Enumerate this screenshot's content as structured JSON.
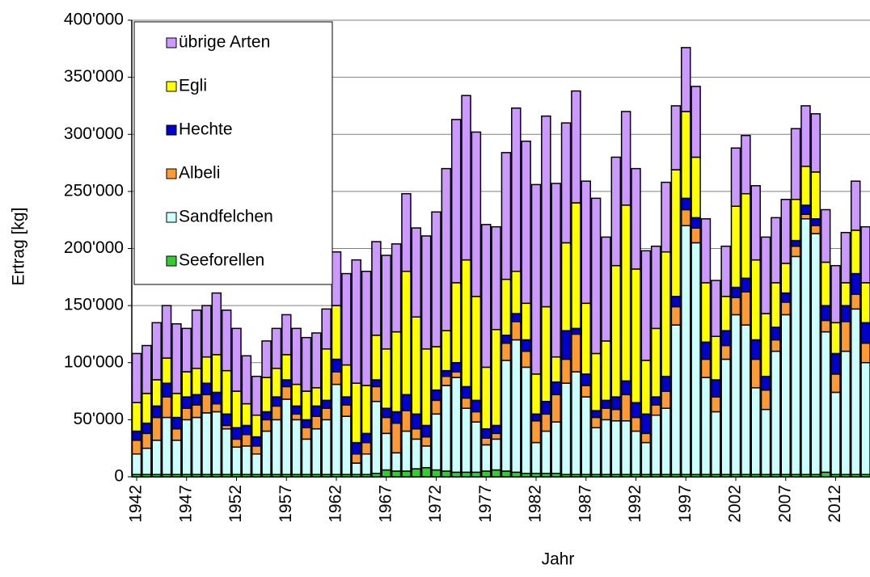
{
  "chart_data": {
    "type": "stacked-bar",
    "x_label": "Jahr",
    "y_label": "Ertrag [kg]",
    "categories": [
      "1942",
      null,
      null,
      null,
      null,
      "1947",
      null,
      null,
      null,
      null,
      "1952",
      null,
      null,
      null,
      null,
      "1957",
      null,
      null,
      null,
      null,
      "1962",
      null,
      null,
      null,
      null,
      "1967",
      null,
      null,
      null,
      null,
      "1972",
      null,
      null,
      null,
      null,
      "1977",
      null,
      null,
      null,
      null,
      "1982",
      null,
      null,
      null,
      null,
      "1987",
      null,
      null,
      null,
      null,
      "1992",
      null,
      null,
      null,
      null,
      "1997",
      null,
      null,
      null,
      null,
      "2002",
      null,
      null,
      null,
      null,
      "2007",
      null,
      null,
      null,
      null,
      "2012",
      null,
      null,
      null
    ],
    "series": [
      {
        "name": "Seeforellen",
        "color": "#33cc33",
        "values": [
          2000,
          2000,
          2000,
          2000,
          2000,
          2000,
          2000,
          2000,
          2000,
          2000,
          2000,
          2000,
          2000,
          2000,
          2000,
          2000,
          2000,
          2000,
          2000,
          2000,
          2000,
          2000,
          2000,
          2000,
          3000,
          6000,
          5000,
          5000,
          7000,
          8000,
          6000,
          5000,
          4000,
          4000,
          4000,
          5000,
          6000,
          5000,
          4000,
          3000,
          3000,
          3000,
          3000,
          2000,
          2000,
          2000,
          2000,
          2000,
          2000,
          2000,
          2000,
          2000,
          2000,
          2000,
          2000,
          2000,
          2000,
          2000,
          2000,
          2000,
          2000,
          2000,
          2000,
          2000,
          2000,
          2000,
          2000,
          2000,
          2000,
          4000,
          2000,
          2000,
          2000,
          2000
        ]
      },
      {
        "name": "Sandfelchen",
        "color": "#ccffff",
        "values": [
          18000,
          23000,
          30000,
          50000,
          30000,
          48000,
          50000,
          54000,
          55000,
          40000,
          24000,
          25000,
          18000,
          38000,
          48000,
          66000,
          48000,
          31000,
          40000,
          48000,
          79000,
          51000,
          10000,
          18000,
          63000,
          32000,
          16000,
          35000,
          26000,
          19000,
          49000,
          75000,
          83000,
          56000,
          44000,
          23000,
          27000,
          97000,
          116000,
          93000,
          27000,
          37000,
          45000,
          80000,
          90000,
          68000,
          41000,
          48000,
          47000,
          47000,
          38000,
          28000,
          52000,
          58000,
          131000,
          218000,
          203000,
          85000,
          55000,
          101000,
          140000,
          131000,
          76000,
          57000,
          108000,
          140000,
          191000,
          224000,
          211000,
          123000,
          72000,
          108000,
          145000,
          98000
        ]
      },
      {
        "name": "Albeli",
        "color": "#ff9933",
        "values": [
          12000,
          13000,
          20000,
          18000,
          10000,
          10000,
          11000,
          16000,
          7000,
          3000,
          7000,
          10000,
          7000,
          10000,
          12000,
          11000,
          5000,
          10000,
          11000,
          10000,
          11000,
          10000,
          8000,
          10000,
          13000,
          14000,
          26000,
          18000,
          9000,
          8000,
          12000,
          8000,
          5000,
          9000,
          9000,
          6000,
          5000,
          15000,
          16000,
          14000,
          19000,
          15000,
          24000,
          21000,
          33000,
          10000,
          9000,
          10000,
          10000,
          23000,
          12000,
          8000,
          9000,
          15000,
          16000,
          14000,
          13000,
          16000,
          13000,
          12000,
          15000,
          29000,
          25000,
          17000,
          10000,
          11000,
          9000,
          4000,
          7000,
          10000,
          16000,
          26000,
          13000,
          17000
        ]
      },
      {
        "name": "Hechte",
        "color": "#0000cc",
        "values": [
          8000,
          9000,
          10000,
          12000,
          10000,
          10000,
          9000,
          10000,
          10000,
          10000,
          10000,
          8000,
          8000,
          7000,
          8000,
          6000,
          7000,
          7000,
          9000,
          7000,
          11000,
          7000,
          10000,
          8000,
          6000,
          8000,
          10000,
          14000,
          13000,
          10000,
          9000,
          5000,
          8000,
          10000,
          10000,
          8000,
          7000,
          7000,
          7000,
          10000,
          6000,
          11000,
          11000,
          25000,
          5000,
          10000,
          6000,
          7000,
          11000,
          12000,
          13000,
          17000,
          7000,
          13000,
          9000,
          10000,
          9000,
          15000,
          15000,
          13000,
          9000,
          12000,
          17000,
          12000,
          11000,
          8000,
          5000,
          8000,
          6000,
          13000,
          18000,
          14000,
          18000,
          18000
        ]
      },
      {
        "name": "Egli",
        "color": "#ffff00",
        "values": [
          25000,
          26000,
          23000,
          22000,
          21000,
          22000,
          23000,
          23000,
          33000,
          38000,
          32000,
          19000,
          19000,
          30000,
          25000,
          22000,
          19000,
          25000,
          16000,
          45000,
          47000,
          28000,
          52000,
          42000,
          39000,
          52000,
          70000,
          108000,
          85000,
          67000,
          38000,
          35000,
          70000,
          111000,
          91000,
          54000,
          84000,
          49000,
          37000,
          32000,
          35000,
          83000,
          22000,
          77000,
          110000,
          62000,
          50000,
          52000,
          115000,
          154000,
          117000,
          47000,
          60000,
          109000,
          111000,
          76000,
          53000,
          52000,
          38000,
          30000,
          71000,
          74000,
          70000,
          55000,
          39000,
          26000,
          36000,
          34000,
          41000,
          38000,
          27000,
          20000,
          38000,
          35000
        ]
      },
      {
        "name": "übrige Arten",
        "color": "#cc99ff",
        "values": [
          43000,
          42000,
          50000,
          46000,
          61000,
          38000,
          51000,
          45000,
          54000,
          53000,
          55000,
          42000,
          34000,
          32000,
          35000,
          35000,
          49000,
          47000,
          48000,
          35000,
          47000,
          80000,
          108000,
          100000,
          82000,
          82000,
          77000,
          68000,
          78000,
          99000,
          118000,
          142000,
          143000,
          144000,
          144000,
          125000,
          90000,
          111000,
          143000,
          142000,
          166000,
          167000,
          152000,
          105000,
          98000,
          107000,
          136000,
          91000,
          95000,
          82000,
          88000,
          96000,
          72000,
          61000,
          56000,
          56000,
          62000,
          56000,
          49000,
          44000,
          51000,
          51000,
          65000,
          67000,
          57000,
          56000,
          62000,
          53000,
          51000,
          46000,
          50000,
          44000,
          43000,
          49000
        ]
      }
    ],
    "ylim": [
      0,
      400000
    ],
    "yticks": [
      0,
      {
        "value": 50000,
        "label": "50'000"
      },
      {
        "value": 100000,
        "label": "100'000"
      },
      {
        "value": 150000,
        "label": "150'000"
      },
      {
        "value": 200000,
        "label": "200'000"
      },
      {
        "value": 250000,
        "label": "250'000"
      },
      {
        "value": 300000,
        "label": "300'000"
      },
      {
        "value": 350000,
        "label": "350'000"
      },
      {
        "value": 400000,
        "label": "400'000"
      }
    ],
    "grid": true,
    "legend": "upper-left"
  }
}
